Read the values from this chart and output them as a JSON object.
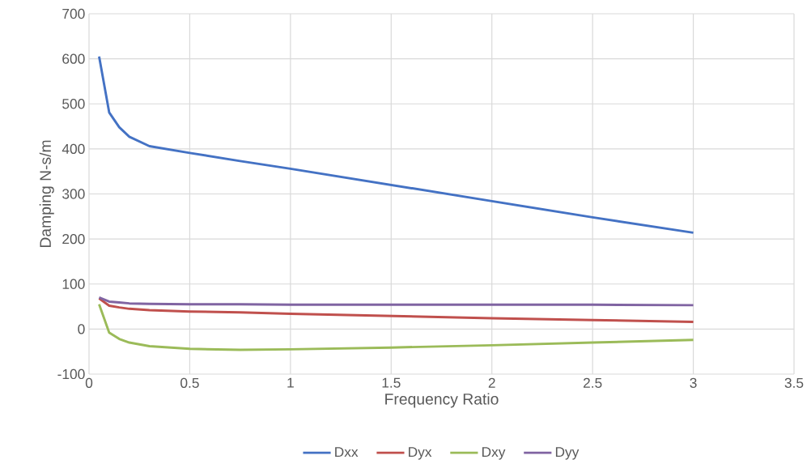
{
  "chart_data": {
    "type": "line",
    "xlabel": "Frequency Ratio",
    "ylabel": "Damping N-s/m",
    "x": [
      0.05,
      0.1,
      0.15,
      0.2,
      0.3,
      0.5,
      0.75,
      1,
      1.5,
      2,
      2.5,
      3
    ],
    "series": [
      {
        "name": "Dxx",
        "color": "#4472c4",
        "values": [
          605,
          481,
          448,
          427,
          406,
          391,
          373,
          356,
          320,
          284,
          248,
          214
        ]
      },
      {
        "name": "Dyx",
        "color": "#c0504d",
        "values": [
          68,
          52,
          48,
          45,
          42,
          39,
          37,
          34,
          29,
          24,
          20,
          16
        ]
      },
      {
        "name": "Dxy",
        "color": "#9bbb59",
        "values": [
          55,
          -8,
          -22,
          -30,
          -38,
          -44,
          -46,
          -45,
          -41,
          -36,
          -30,
          -24
        ]
      },
      {
        "name": "Dyy",
        "color": "#8064a2",
        "values": [
          70,
          61,
          59,
          57,
          56,
          55,
          55,
          54,
          54,
          54,
          54,
          53
        ]
      }
    ],
    "xlim": [
      0,
      3.5
    ],
    "xticks": [
      0,
      0.5,
      1,
      1.5,
      2,
      2.5,
      3,
      3.5
    ],
    "ylim": [
      -100,
      700
    ],
    "yticks": [
      -100,
      0,
      100,
      200,
      300,
      400,
      500,
      600,
      700
    ],
    "grid": true,
    "legend": "bottom",
    "marker": "none",
    "line_style": "solid"
  }
}
